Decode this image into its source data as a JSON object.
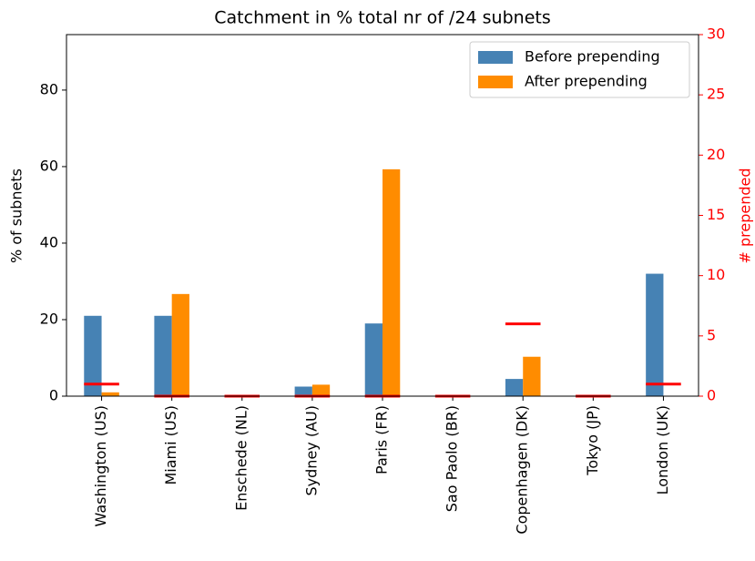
{
  "chart_data": {
    "type": "bar",
    "title": "Catchment in % total nr of /24 subnets",
    "ylabel": "% of subnets",
    "y2label": "# prepended",
    "categories": [
      "Washington (US)",
      "Miami (US)",
      "Enschede (NL)",
      "Sydney (AU)",
      "Paris (FR)",
      "Sao Paolo (BR)",
      "Copenhagen (DK)",
      "Tokyo (JP)",
      "London (UK)"
    ],
    "series": [
      {
        "name": "Before prepending",
        "color": "#4682b4",
        "values": [
          21,
          21,
          0,
          2.5,
          19,
          0,
          4.5,
          0,
          32
        ]
      },
      {
        "name": "After prepending",
        "color": "#ff8c00",
        "values": [
          1,
          26.7,
          0,
          3,
          59.3,
          0,
          10.3,
          0,
          0
        ]
      },
      {
        "color": "#ff0000",
        "axis": "y2",
        "values": [
          1,
          0,
          0,
          0,
          0,
          0,
          6,
          0,
          1
        ]
      }
    ],
    "ylim": [
      0,
      94.5
    ],
    "yticks": [
      0,
      20,
      40,
      60,
      80
    ],
    "y2lim": [
      0,
      30
    ],
    "y2ticks": [
      0,
      5,
      10,
      15,
      20,
      25,
      30
    ],
    "y2color": "#ff0000",
    "legend": "upper right"
  }
}
